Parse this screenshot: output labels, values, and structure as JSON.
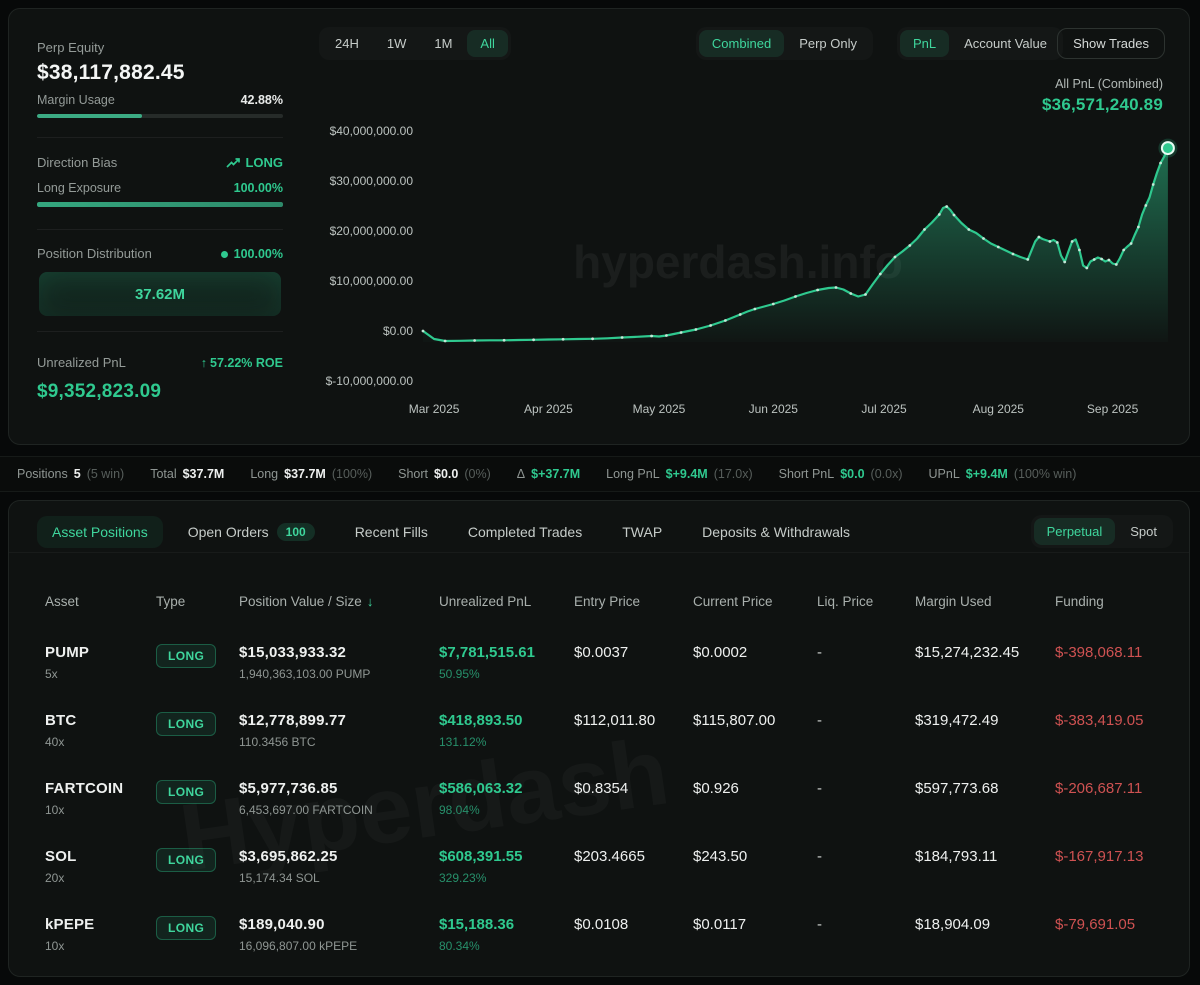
{
  "colors": {
    "accent_green": "#2fc98f",
    "bright_green": "#3fd69d",
    "negative_red": "#cf5252",
    "card_bg": "#0f1211",
    "page_bg": "#070909"
  },
  "overview": {
    "perp_equity_label": "Perp Equity",
    "perp_equity_value": "$38,117,882.45",
    "margin_usage_label": "Margin Usage",
    "margin_usage_value": "42.88%",
    "margin_usage_pct": 42.88,
    "direction_bias_label": "Direction Bias",
    "direction_bias_value": "LONG",
    "long_exposure_label": "Long Exposure",
    "long_exposure_value": "100.00%",
    "long_exposure_pct": 100,
    "position_distribution_label": "Position Distribution",
    "position_distribution_pct": "100.00%",
    "position_distribution_bar_value": "37.62M",
    "unrealized_pnl_label": "Unrealized PnL",
    "roe_value": "57.22% ROE",
    "unrealized_pnl_value": "$9,352,823.09"
  },
  "chart_controls": {
    "ranges": [
      "24H",
      "1W",
      "1M",
      "All"
    ],
    "active_range": "All",
    "mode_options": [
      "Combined",
      "Perp Only"
    ],
    "active_mode": "Combined",
    "metric_options": [
      "PnL",
      "Account Value"
    ],
    "active_metric": "PnL",
    "show_trades_label": "Show Trades",
    "all_pnl_label": "All PnL (Combined)",
    "all_pnl_value": "$36,571,240.89"
  },
  "chart_data": {
    "type": "area",
    "title": "All PnL (Combined)",
    "units": "USD millions",
    "watermark": "hyperdash.info",
    "ylim_millions": [
      -10,
      40
    ],
    "y_ticks": [
      {
        "label": "$40,000,000.00",
        "value": 40
      },
      {
        "label": "$30,000,000.00",
        "value": 30
      },
      {
        "label": "$20,000,000.00",
        "value": 20
      },
      {
        "label": "$10,000,000.00",
        "value": 10
      },
      {
        "label": "$0.00",
        "value": 0
      },
      {
        "label": "$-10,000,000.00",
        "value": -10
      }
    ],
    "x_span_days": 205,
    "x_ticks": [
      {
        "label": "Mar 2025",
        "day": 3
      },
      {
        "label": "Apr 2025",
        "day": 34
      },
      {
        "label": "May 2025",
        "day": 64
      },
      {
        "label": "Jun 2025",
        "day": 95
      },
      {
        "label": "Jul 2025",
        "day": 125
      },
      {
        "label": "Aug 2025",
        "day": 156
      },
      {
        "label": "Sep 2025",
        "day": 187
      }
    ],
    "series": [
      {
        "name": "All PnL (Combined)",
        "final_value_label": "$36,571,240.89",
        "points": [
          [
            0,
            0.0
          ],
          [
            3,
            -1.6
          ],
          [
            6,
            -2.0
          ],
          [
            10,
            -1.95
          ],
          [
            14,
            -1.9
          ],
          [
            18,
            -1.85
          ],
          [
            22,
            -1.85
          ],
          [
            26,
            -1.8
          ],
          [
            30,
            -1.75
          ],
          [
            34,
            -1.7
          ],
          [
            38,
            -1.65
          ],
          [
            42,
            -1.6
          ],
          [
            46,
            -1.55
          ],
          [
            50,
            -1.45
          ],
          [
            54,
            -1.3
          ],
          [
            58,
            -1.15
          ],
          [
            62,
            -1.0
          ],
          [
            64,
            -1.1
          ],
          [
            66,
            -0.9
          ],
          [
            68,
            -0.6
          ],
          [
            70,
            -0.3
          ],
          [
            72,
            0.0
          ],
          [
            74,
            0.3
          ],
          [
            76,
            0.7
          ],
          [
            78,
            1.1
          ],
          [
            80,
            1.6
          ],
          [
            82,
            2.1
          ],
          [
            84,
            2.7
          ],
          [
            86,
            3.3
          ],
          [
            88,
            3.9
          ],
          [
            90,
            4.4
          ],
          [
            92,
            4.8
          ],
          [
            95,
            5.4
          ],
          [
            98,
            6.1
          ],
          [
            101,
            6.9
          ],
          [
            104,
            7.6
          ],
          [
            107,
            8.2
          ],
          [
            110,
            8.6
          ],
          [
            112,
            8.7
          ],
          [
            114,
            8.3
          ],
          [
            116,
            7.5
          ],
          [
            118,
            6.9
          ],
          [
            120,
            7.3
          ],
          [
            122,
            9.4
          ],
          [
            124,
            11.4
          ],
          [
            126,
            13.2
          ],
          [
            128,
            14.8
          ],
          [
            130,
            15.9
          ],
          [
            132,
            17.1
          ],
          [
            134,
            18.5
          ],
          [
            136,
            20.3
          ],
          [
            138,
            21.7
          ],
          [
            140,
            23.3
          ],
          [
            141,
            24.6
          ],
          [
            142,
            24.9
          ],
          [
            143,
            24.2
          ],
          [
            144,
            23.2
          ],
          [
            146,
            21.6
          ],
          [
            148,
            20.3
          ],
          [
            150,
            19.6
          ],
          [
            152,
            18.5
          ],
          [
            154,
            17.5
          ],
          [
            156,
            16.8
          ],
          [
            158,
            16.1
          ],
          [
            160,
            15.4
          ],
          [
            162,
            14.8
          ],
          [
            164,
            14.3
          ],
          [
            166,
            17.9
          ],
          [
            167,
            18.8
          ],
          [
            168,
            18.4
          ],
          [
            170,
            17.9
          ],
          [
            171,
            18.2
          ],
          [
            172,
            17.7
          ],
          [
            173,
            15.1
          ],
          [
            174,
            13.8
          ],
          [
            175,
            15.9
          ],
          [
            176,
            17.9
          ],
          [
            177,
            18.3
          ],
          [
            178,
            16.2
          ],
          [
            179,
            13.1
          ],
          [
            180,
            12.6
          ],
          [
            181,
            13.9
          ],
          [
            182,
            14.3
          ],
          [
            183,
            14.7
          ],
          [
            184,
            14.4
          ],
          [
            185,
            13.9
          ],
          [
            186,
            14.2
          ],
          [
            187,
            13.5
          ],
          [
            188,
            13.3
          ],
          [
            189,
            14.6
          ],
          [
            190,
            16.2
          ],
          [
            191,
            16.9
          ],
          [
            192,
            17.5
          ],
          [
            193,
            19.2
          ],
          [
            194,
            20.8
          ],
          [
            195,
            23.3
          ],
          [
            196,
            25.1
          ],
          [
            197,
            26.7
          ],
          [
            198,
            29.3
          ],
          [
            199,
            31.6
          ],
          [
            200,
            33.6
          ],
          [
            201,
            34.9
          ],
          [
            202,
            36.57
          ]
        ]
      }
    ]
  },
  "summary_bar": {
    "items": [
      {
        "label": "Positions",
        "value": "5",
        "extra": "(5 win)",
        "style": "white"
      },
      {
        "label": "Total",
        "value": "$37.7M",
        "extra": "",
        "style": "white"
      },
      {
        "label": "Long",
        "value": "$37.7M",
        "extra": "(100%)",
        "style": "white"
      },
      {
        "label": "Short",
        "value": "$0.0",
        "extra": "(0%)",
        "style": "white"
      },
      {
        "label": "Δ",
        "value": "$+37.7M",
        "extra": "",
        "style": "green"
      },
      {
        "label": "Long PnL",
        "value": "$+9.4M",
        "extra": "(17.0x)",
        "style": "green"
      },
      {
        "label": "Short PnL",
        "value": "$0.0",
        "extra": "(0.0x)",
        "style": "green"
      },
      {
        "label": "UPnL",
        "value": "$+9.4M",
        "extra": "(100% win)",
        "style": "green"
      }
    ]
  },
  "positions_panel": {
    "tabs": [
      {
        "label": "Asset Positions",
        "active": true,
        "badge": ""
      },
      {
        "label": "Open Orders",
        "active": false,
        "badge": "100"
      },
      {
        "label": "Recent Fills",
        "active": false,
        "badge": ""
      },
      {
        "label": "Completed Trades",
        "active": false,
        "badge": ""
      },
      {
        "label": "TWAP",
        "active": false,
        "badge": ""
      },
      {
        "label": "Deposits & Withdrawals",
        "active": false,
        "badge": ""
      }
    ],
    "market_options": [
      "Perpetual",
      "Spot"
    ],
    "active_market": "Perpetual",
    "watermark": "Hyperdash"
  },
  "table": {
    "columns": [
      "Asset",
      "Type",
      "Position Value / Size",
      "Unrealized PnL",
      "Entry Price",
      "Current Price",
      "Liq. Price",
      "Margin Used",
      "Funding"
    ],
    "sort_column": "Position Value / Size",
    "sort_direction": "desc",
    "rows": [
      {
        "asset": "PUMP",
        "leverage": "5x",
        "type": "LONG",
        "value": "$15,033,933.32",
        "size": "1,940,363,103.00 PUMP",
        "upnl": "$7,781,515.61",
        "upnl_pct": "50.95%",
        "entry": "$0.0037",
        "current": "$0.0002",
        "liq": "-",
        "margin": "$15,274,232.45",
        "funding": "$-398,068.11"
      },
      {
        "asset": "BTC",
        "leverage": "40x",
        "type": "LONG",
        "value": "$12,778,899.77",
        "size": "110.3456 BTC",
        "upnl": "$418,893.50",
        "upnl_pct": "131.12%",
        "entry": "$112,011.80",
        "current": "$115,807.00",
        "liq": "-",
        "margin": "$319,472.49",
        "funding": "$-383,419.05"
      },
      {
        "asset": "FARTCOIN",
        "leverage": "10x",
        "type": "LONG",
        "value": "$5,977,736.85",
        "size": "6,453,697.00 FARTCOIN",
        "upnl": "$586,063.32",
        "upnl_pct": "98.04%",
        "entry": "$0.8354",
        "current": "$0.926",
        "liq": "-",
        "margin": "$597,773.68",
        "funding": "$-206,687.11"
      },
      {
        "asset": "SOL",
        "leverage": "20x",
        "type": "LONG",
        "value": "$3,695,862.25",
        "size": "15,174.34 SOL",
        "upnl": "$608,391.55",
        "upnl_pct": "329.23%",
        "entry": "$203.4665",
        "current": "$243.50",
        "liq": "-",
        "margin": "$184,793.11",
        "funding": "$-167,917.13"
      },
      {
        "asset": "kPEPE",
        "leverage": "10x",
        "type": "LONG",
        "value": "$189,040.90",
        "size": "16,096,807.00 kPEPE",
        "upnl": "$15,188.36",
        "upnl_pct": "80.34%",
        "entry": "$0.0108",
        "current": "$0.0117",
        "liq": "-",
        "margin": "$18,904.09",
        "funding": "$-79,691.05"
      }
    ]
  }
}
